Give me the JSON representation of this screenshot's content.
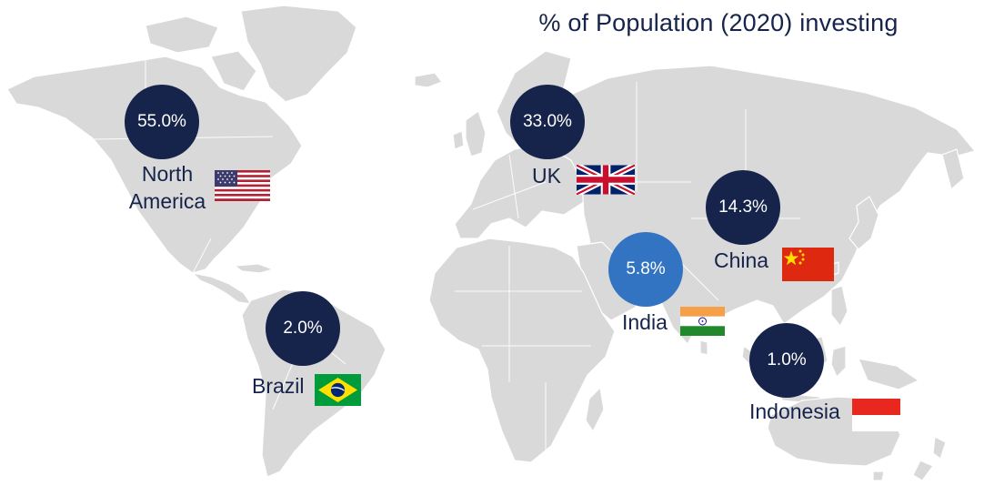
{
  "title": "% of Population (2020) investing",
  "colors": {
    "land": "#d9d9d9",
    "border": "#ffffff",
    "bubble": "#16234a",
    "bubble_highlight": "#3374c2",
    "text": "#16234a"
  },
  "regions": [
    {
      "id": "north_america",
      "name_line1": "North",
      "name_line2": "America",
      "value": "55.0%",
      "flag": "us-flag-icon",
      "highlight": false
    },
    {
      "id": "uk",
      "name_line1": "UK",
      "value": "33.0%",
      "flag": "uk-flag-icon",
      "highlight": false
    },
    {
      "id": "china",
      "name_line1": "China",
      "value": "14.3%",
      "flag": "china-flag-icon",
      "highlight": false
    },
    {
      "id": "india",
      "name_line1": "India",
      "value": "5.8%",
      "flag": "india-flag-icon",
      "highlight": true
    },
    {
      "id": "brazil",
      "name_line1": "Brazil",
      "value": "2.0%",
      "flag": "brazil-flag-icon",
      "highlight": false
    },
    {
      "id": "indonesia",
      "name_line1": "Indonesia",
      "value": "1.0%",
      "flag": "indonesia-flag-icon",
      "highlight": false
    }
  ]
}
